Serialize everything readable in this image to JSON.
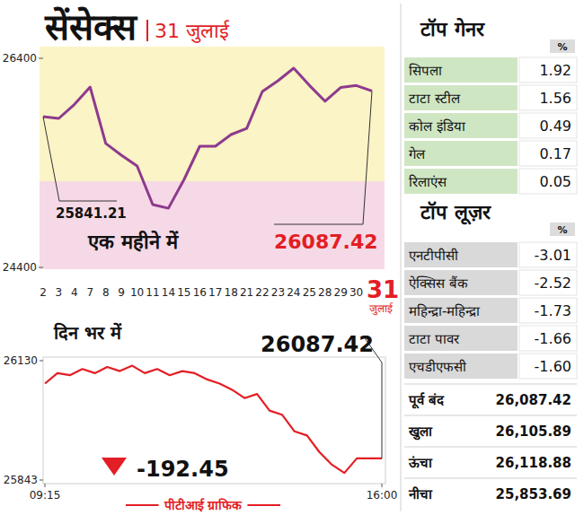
{
  "header": {
    "title": "सेंसेक्स",
    "date": "31 जुलाई"
  },
  "chart_data": [
    {
      "type": "line",
      "title": "एक महीने में",
      "categories": [
        "2",
        "3",
        "4",
        "7",
        "8",
        "9",
        "10",
        "11",
        "14",
        "15",
        "16",
        "17",
        "18",
        "21",
        "22",
        "23",
        "24",
        "25",
        "28",
        "29",
        "30",
        "31"
      ],
      "values": [
        25841.21,
        25825,
        25960,
        26125,
        25585,
        25473,
        25370,
        25001,
        24966,
        25241,
        25559,
        25559,
        25670,
        25730,
        26082,
        26185,
        26306,
        26142,
        25990,
        26120,
        26140,
        26087.42
      ],
      "color": "#8e3a8e",
      "ylim": [
        24400,
        26400
      ],
      "yticks": [
        24400,
        26400
      ],
      "grid": false,
      "annotations": [
        "25841.21",
        "26087.42",
        "जुलाई"
      ]
    },
    {
      "type": "line",
      "title": "दिन भर में",
      "x": [
        555,
        570,
        585,
        600,
        615,
        630,
        645,
        660,
        675,
        690,
        705,
        720,
        735,
        750,
        765,
        780,
        795,
        810,
        825,
        840,
        855,
        870,
        885,
        900,
        915,
        930,
        945,
        960
      ],
      "values": [
        26075,
        26100,
        26095,
        26110,
        26100,
        26115,
        26105,
        26118,
        26100,
        26110,
        26095,
        26105,
        26100,
        26085,
        26075,
        26060,
        26040,
        26050,
        26010,
        26000,
        25960,
        25950,
        25910,
        25880,
        25860,
        25895,
        25895,
        25895
      ],
      "color": "#e31e24",
      "xlim": [
        555,
        960
      ],
      "xticks": [
        {
          "value": 555,
          "label": "09:15"
        },
        {
          "value": 960,
          "label": "16:00"
        }
      ],
      "ylim": [
        25843,
        26130
      ],
      "yticks": [
        25843,
        26130
      ],
      "grid": false,
      "annotations": [
        "26087.42",
        "-192.45"
      ]
    }
  ],
  "top_gainers": {
    "title": "टॉप गेनर",
    "unit": "%",
    "rows": [
      [
        "सिपला",
        "1.92"
      ],
      [
        "टाटा स्टील",
        "1.56"
      ],
      [
        "कोल इंडिया",
        "0.49"
      ],
      [
        "गेल",
        "0.17"
      ],
      [
        "रिलाएंस",
        "0.05"
      ]
    ]
  },
  "top_losers": {
    "title": "टॉप लूज़र",
    "unit": "%",
    "rows": [
      [
        "एनटीपीसी",
        "-3.01"
      ],
      [
        "ऐक्सिस बैंक",
        "-2.52"
      ],
      [
        "महिन्द्रा-महिन्द्रा",
        "-1.73"
      ],
      [
        "टाटा पावर",
        "-1.66"
      ],
      [
        "एचडीएफसी",
        "-1.60"
      ]
    ]
  },
  "summary": {
    "rows": [
      [
        "पूर्व बंद",
        "26,087.42"
      ],
      [
        "खुला",
        "26,105.89"
      ],
      [
        "ऊंचा",
        "26,118.88"
      ],
      [
        "नीचा",
        "25,853.69"
      ]
    ]
  },
  "source": "पीटीआई ग्राफिक"
}
